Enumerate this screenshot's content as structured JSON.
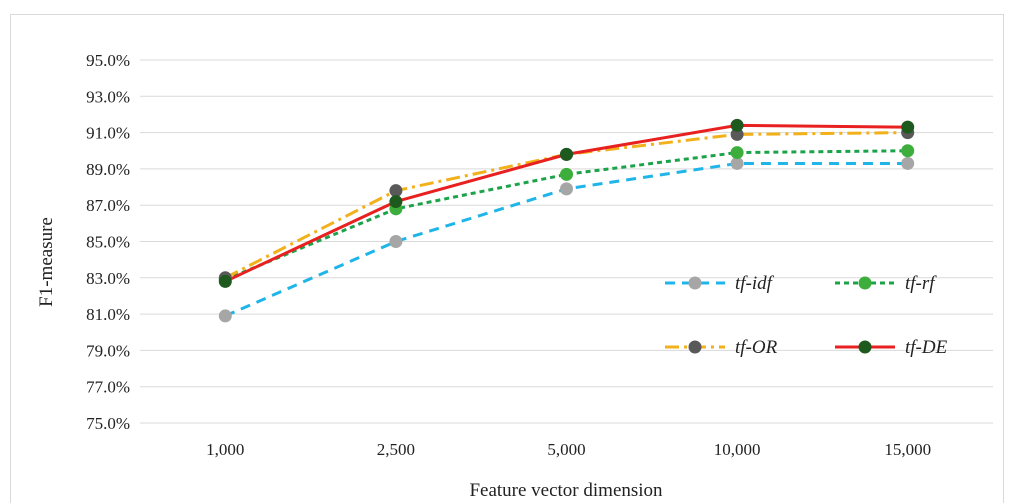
{
  "chart_data": {
    "type": "line",
    "title": "",
    "xlabel": "Feature vector dimension",
    "ylabel": "F1-measure",
    "categories": [
      "1,000",
      "2,500",
      "5,000",
      "10,000",
      "15,000"
    ],
    "yticks": [
      "75.0%",
      "77.0%",
      "79.0%",
      "81.0%",
      "83.0%",
      "85.0%",
      "87.0%",
      "89.0%",
      "91.0%",
      "93.0%",
      "95.0%"
    ],
    "ylim": [
      75,
      95
    ],
    "grid": true,
    "legend_position": "bottom-right",
    "series": [
      {
        "name": "tf-idf",
        "values": [
          80.9,
          85.0,
          87.9,
          89.3,
          89.3
        ],
        "line_color": "#1fb5e8",
        "marker_color": "#a6a6a6",
        "dash": "dashed"
      },
      {
        "name": "tf-rf",
        "values": [
          82.9,
          86.8,
          88.7,
          89.9,
          90.0
        ],
        "line_color": "#1ca34a",
        "marker_color": "#3dae3c",
        "dash": "dotted"
      },
      {
        "name": "tf-OR",
        "values": [
          83.0,
          87.8,
          89.8,
          90.9,
          91.0
        ],
        "line_color": "#f2b11b",
        "marker_color": "#595959",
        "dash": "dashdot"
      },
      {
        "name": "tf-DE",
        "values": [
          82.8,
          87.2,
          89.8,
          91.4,
          91.3
        ],
        "line_color": "#e8201f",
        "marker_color": "#1e5a1e",
        "dash": "solid"
      }
    ]
  }
}
